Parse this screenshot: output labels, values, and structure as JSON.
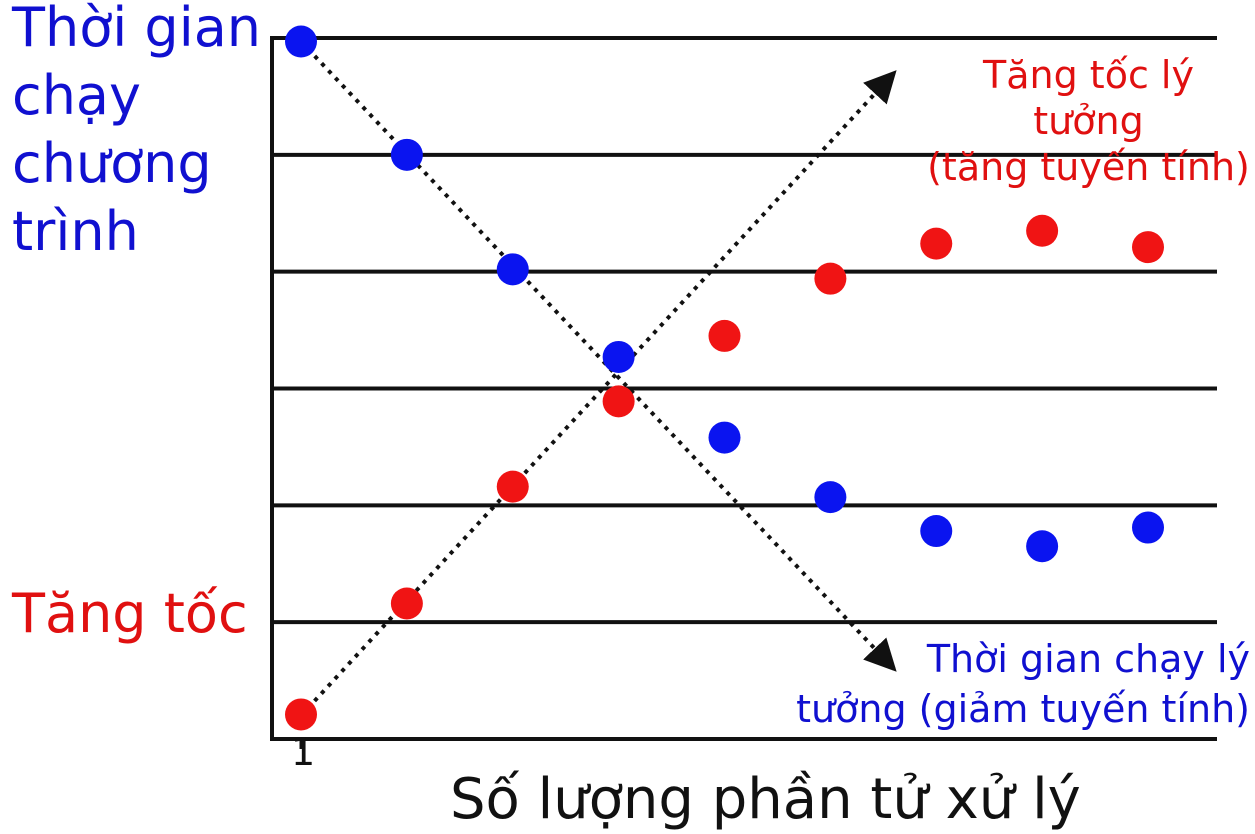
{
  "chart_data": {
    "type": "scatter",
    "xlabel": "Số lượng phần tử xử lý",
    "ylabel_top": [
      "Thời gian",
      "chạy",
      "chương",
      "trình"
    ],
    "ylabel_bottom": "Tăng tốc",
    "x_tick_labels": [
      "1"
    ],
    "x": [
      1,
      2,
      3,
      4,
      5,
      6,
      7,
      8,
      9
    ],
    "xlim": [
      1,
      9
    ],
    "ylim": [
      0,
      6
    ],
    "grid": "horizontal",
    "series": [
      {
        "color": "#0a14f0",
        "values": [
          5.97,
          5.0,
          4.02,
          3.27,
          2.58,
          2.07,
          1.78,
          1.65,
          1.81
        ]
      },
      {
        "color": "#f01414",
        "values": [
          0.21,
          1.16,
          2.16,
          2.89,
          3.45,
          3.94,
          4.24,
          4.35,
          4.21
        ]
      }
    ],
    "reference_lines": [
      {
        "label": "Tăng tốc lý tưởng (tăng tuyến tính)",
        "from": [
          1,
          0.2
        ],
        "to": [
          6.6,
          5.7
        ],
        "color": "#111111"
      },
      {
        "label": "Thời gian chạy lý tưởng (giảm tuyến tính)",
        "from": [
          1,
          5.97
        ],
        "to": [
          6.6,
          0.6
        ],
        "color": "#111111"
      }
    ],
    "annotations": {
      "speedup_ideal": [
        "Tăng tốc lý tưởng",
        "(tăng tuyến tính)"
      ],
      "runtime_ideal": [
        "Thời gian chạy lý",
        "tưởng (giảm tuyến tính)"
      ]
    }
  }
}
